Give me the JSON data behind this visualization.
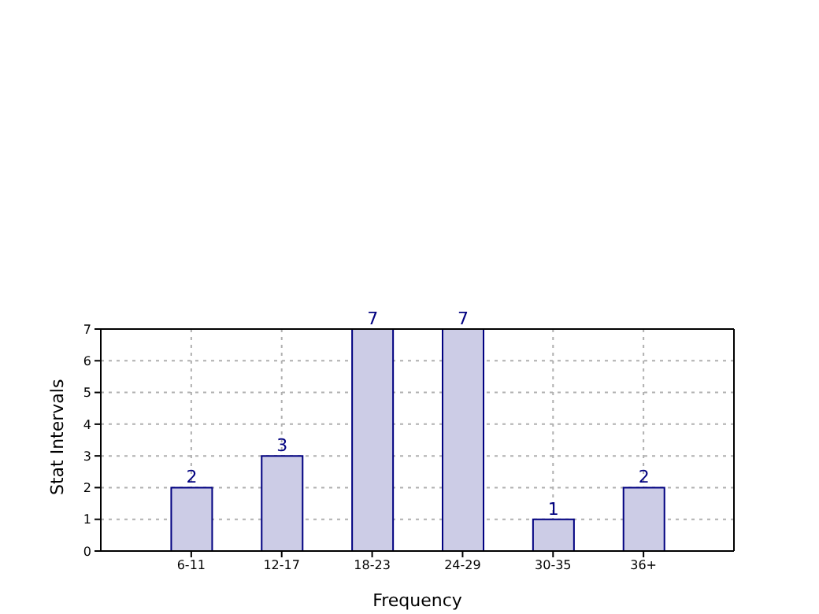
{
  "chart_data": {
    "type": "bar",
    "xlabel": "Frequency",
    "ylabel": "Stat Intervals",
    "categories": [
      "6-11",
      "12-17",
      "18-23",
      "24-29",
      "30-35",
      "36+"
    ],
    "values": [
      2,
      3,
      7,
      7,
      1,
      2
    ],
    "color": "#cccce6",
    "ylim": [
      0,
      7
    ],
    "yticks": [
      0,
      1,
      2,
      3,
      4,
      5,
      6,
      7
    ],
    "grid": true,
    "data_labels": true
  }
}
